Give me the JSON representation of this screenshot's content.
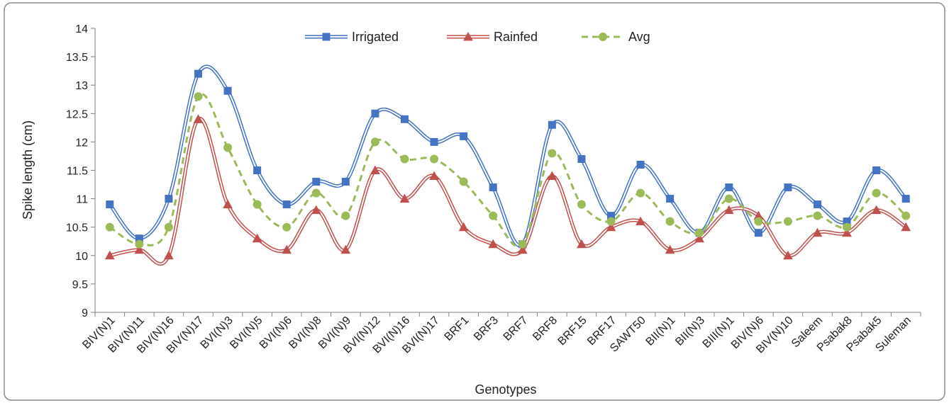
{
  "chart_data": {
    "type": "line",
    "title": "",
    "xlabel": "Genotypes",
    "ylabel": "Spike length (cm)",
    "ylim": [
      9,
      14
    ],
    "ytick_step": 0.5,
    "grid": false,
    "legend": "top-center",
    "categories": [
      "BIV(N)1",
      "BIV(N)11",
      "BIV(N)16",
      "BIV(N)17",
      "BVI(N)3",
      "BVI(N)5",
      "BVI(N)6",
      "BVI(N)8",
      "BVI(N)9",
      "BVI(N)12",
      "BVI(N)16",
      "BVI(N)17",
      "BRF1",
      "BRF3",
      "BRF7",
      "BRF8",
      "BRF15",
      "BRF17",
      "SAWT50",
      "BII(N)1",
      "BII(N)3",
      "BIII(N)1",
      "BIV(N)6",
      "BIV(N)10",
      "Saleem",
      "Psabak8",
      "Psabak5",
      "Suleman"
    ],
    "series": [
      {
        "name": "Irrigated",
        "color": "#4472C4",
        "marker": "square",
        "line": "double",
        "values": [
          10.9,
          10.3,
          11.0,
          13.2,
          12.9,
          11.5,
          10.9,
          11.3,
          11.3,
          12.5,
          12.4,
          12.0,
          12.1,
          11.2,
          10.2,
          12.3,
          11.7,
          10.7,
          11.6,
          11.0,
          10.4,
          11.2,
          10.4,
          11.2,
          10.9,
          10.6,
          11.5,
          11.0
        ]
      },
      {
        "name": "Rainfed",
        "color": "#C0504D",
        "marker": "triangle",
        "line": "double",
        "values": [
          10.0,
          10.1,
          10.0,
          12.4,
          10.9,
          10.3,
          10.1,
          10.8,
          10.1,
          11.5,
          11.0,
          11.4,
          10.5,
          10.2,
          10.1,
          11.4,
          10.2,
          10.5,
          10.6,
          10.1,
          10.3,
          10.8,
          10.7,
          10.0,
          10.4,
          10.4,
          10.8,
          10.5
        ]
      },
      {
        "name": "Avg",
        "color": "#9BBB59",
        "marker": "circle",
        "line": "dashed",
        "values": [
          10.5,
          10.2,
          10.5,
          12.8,
          11.9,
          10.9,
          10.5,
          11.1,
          10.7,
          12.0,
          11.7,
          11.7,
          11.3,
          10.7,
          10.2,
          11.8,
          10.9,
          10.6,
          11.1,
          10.6,
          10.4,
          11.0,
          10.6,
          10.6,
          10.7,
          10.5,
          11.1,
          10.7
        ]
      }
    ]
  }
}
